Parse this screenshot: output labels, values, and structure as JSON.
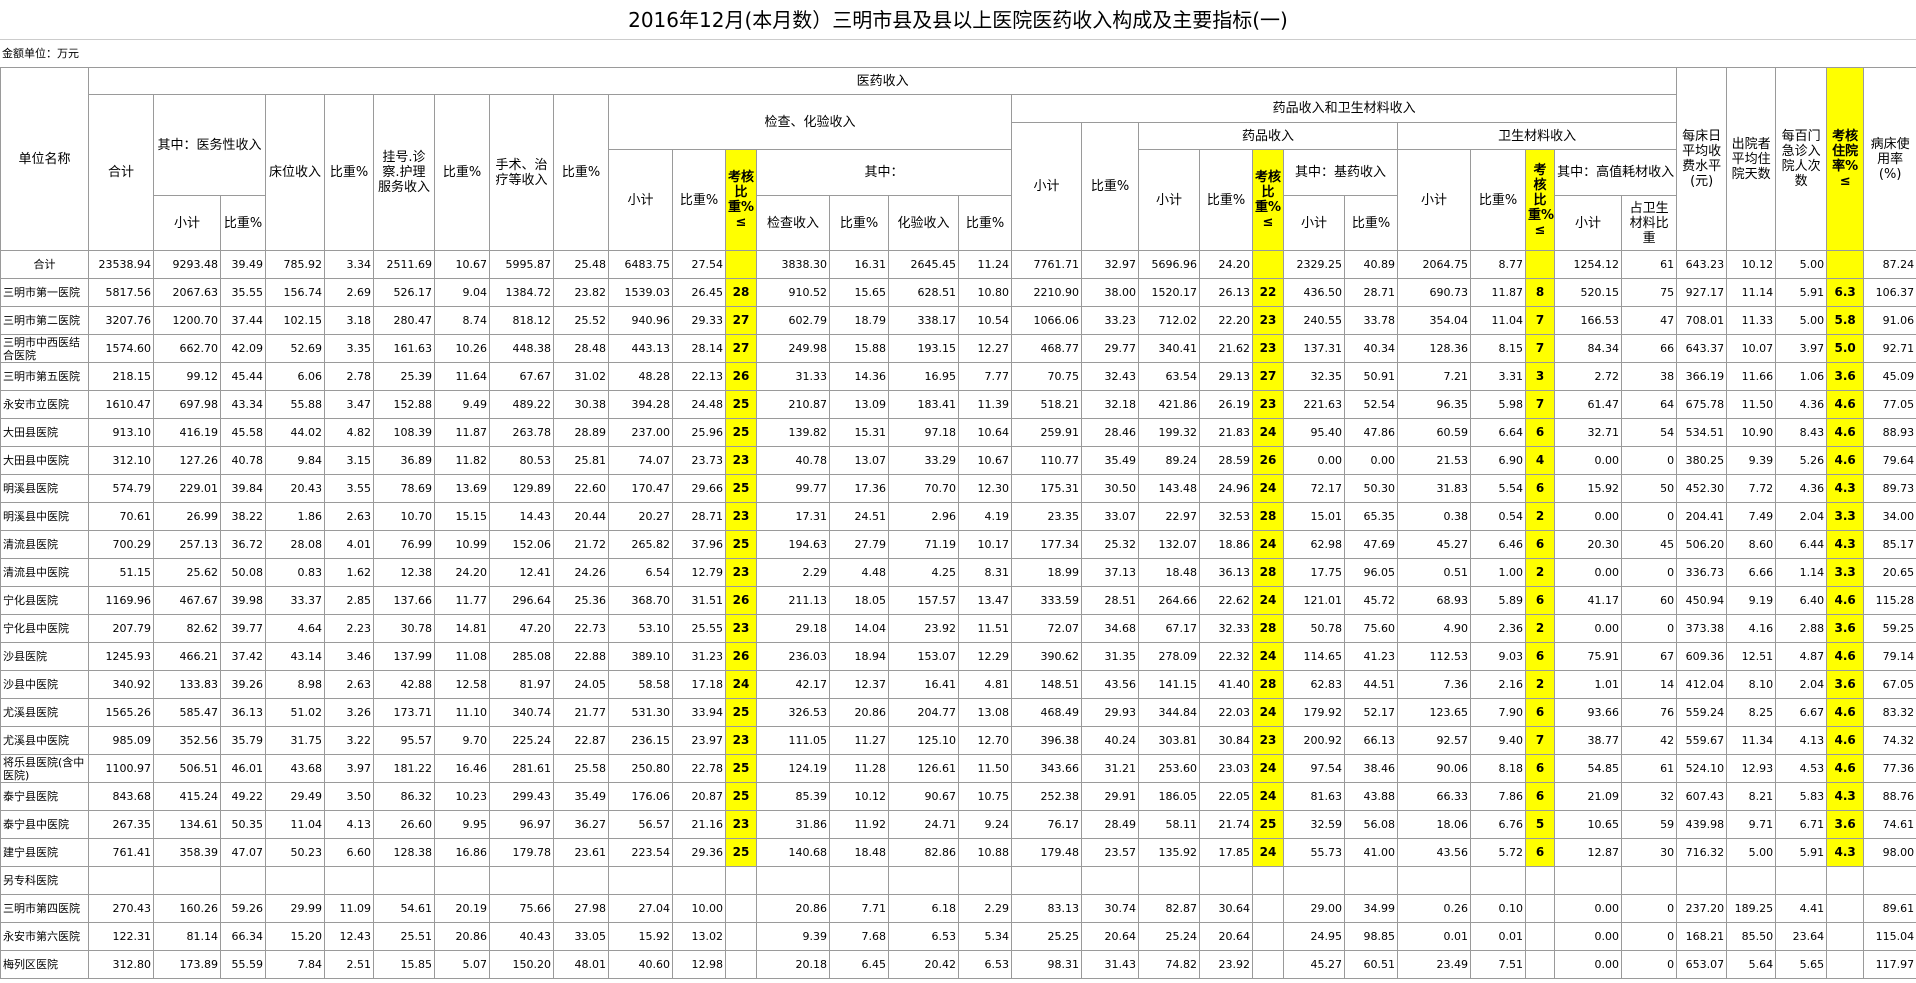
{
  "title": "2016年12月(本月数）三明市县及县以上医院医药收入构成及主要指标(一)",
  "unit": "金额单位：万元",
  "table": {
    "header": [
      [
        "单位名称",
        "医药收入",
        "每床日平均收费水平(元)",
        "出院者平均住院天数",
        "每百门急诊入院人次数",
        "考核住院率%≤",
        "病床使用率(%)"
      ],
      [
        "合计",
        "其中：医务性收入",
        "床位收入",
        "比重%",
        "挂号.诊察.护理服务收入",
        "比重%",
        "手术、治疗等收入",
        "比重%",
        "检查、化验收入",
        "药品收入和卫生材料收入"
      ],
      [
        "小计",
        "比重%",
        "药品收入",
        "卫生材料收入"
      ],
      [
        "小计",
        "比重%",
        "考核比重%≤",
        "其中：",
        "小计",
        "比重%",
        "考核比重%≤",
        "其中：基药收入",
        "小计",
        "比重%",
        "考核比重%≤",
        "其中：高值耗材收入"
      ],
      [
        "小计",
        "比重%",
        "检查收入",
        "比重%",
        "化验收入",
        "比重%",
        "小计",
        "比重%",
        "小计",
        "占卫生材料比重"
      ]
    ],
    "rows": [
      [
        "合计",
        "23538.94",
        "9293.48",
        "39.49",
        "785.92",
        "3.34",
        "2511.69",
        "10.67",
        "5995.87",
        "25.48",
        "6483.75",
        "27.54",
        null,
        "3838.30",
        "16.31",
        "2645.45",
        "11.24",
        "7761.71",
        "32.97",
        "5696.96",
        "24.20",
        null,
        "2329.25",
        "40.89",
        "2064.75",
        "8.77",
        null,
        "1254.12",
        "61",
        "643.23",
        "10.12",
        "5.00",
        null,
        "87.24"
      ],
      [
        "三明市第一医院",
        "5817.56",
        "2067.63",
        "35.55",
        "156.74",
        "2.69",
        "526.17",
        "9.04",
        "1384.72",
        "23.82",
        "1539.03",
        "26.45",
        "28",
        "910.52",
        "15.65",
        "628.51",
        "10.80",
        "2210.90",
        "38.00",
        "1520.17",
        "26.13",
        "22",
        "436.50",
        "28.71",
        "690.73",
        "11.87",
        "8",
        "520.15",
        "75",
        "927.17",
        "11.14",
        "5.91",
        "6.3",
        "106.37"
      ],
      [
        "三明市第二医院",
        "3207.76",
        "1200.70",
        "37.44",
        "102.15",
        "3.18",
        "280.47",
        "8.74",
        "818.12",
        "25.52",
        "940.96",
        "29.33",
        "27",
        "602.79",
        "18.79",
        "338.17",
        "10.54",
        "1066.06",
        "33.23",
        "712.02",
        "22.20",
        "23",
        "240.55",
        "33.78",
        "354.04",
        "11.04",
        "7",
        "166.53",
        "47",
        "708.01",
        "11.33",
        "5.00",
        "5.8",
        "91.06"
      ],
      [
        "三明市中西医结合医院",
        "1574.60",
        "662.70",
        "42.09",
        "52.69",
        "3.35",
        "161.63",
        "10.26",
        "448.38",
        "28.48",
        "443.13",
        "28.14",
        "27",
        "249.98",
        "15.88",
        "193.15",
        "12.27",
        "468.77",
        "29.77",
        "340.41",
        "21.62",
        "23",
        "137.31",
        "40.34",
        "128.36",
        "8.15",
        "7",
        "84.34",
        "66",
        "643.37",
        "10.07",
        "3.97",
        "5.0",
        "92.71"
      ],
      [
        "三明市第五医院",
        "218.15",
        "99.12",
        "45.44",
        "6.06",
        "2.78",
        "25.39",
        "11.64",
        "67.67",
        "31.02",
        "48.28",
        "22.13",
        "26",
        "31.33",
        "14.36",
        "16.95",
        "7.77",
        "70.75",
        "32.43",
        "63.54",
        "29.13",
        "27",
        "32.35",
        "50.91",
        "7.21",
        "3.31",
        "3",
        "2.72",
        "38",
        "366.19",
        "11.66",
        "1.06",
        "3.6",
        "45.09"
      ],
      [
        "永安市立医院",
        "1610.47",
        "697.98",
        "43.34",
        "55.88",
        "3.47",
        "152.88",
        "9.49",
        "489.22",
        "30.38",
        "394.28",
        "24.48",
        "25",
        "210.87",
        "13.09",
        "183.41",
        "11.39",
        "518.21",
        "32.18",
        "421.86",
        "26.19",
        "23",
        "221.63",
        "52.54",
        "96.35",
        "5.98",
        "7",
        "61.47",
        "64",
        "675.78",
        "11.50",
        "4.36",
        "4.6",
        "77.05"
      ],
      [
        "大田县医院",
        "913.10",
        "416.19",
        "45.58",
        "44.02",
        "4.82",
        "108.39",
        "11.87",
        "263.78",
        "28.89",
        "237.00",
        "25.96",
        "25",
        "139.82",
        "15.31",
        "97.18",
        "10.64",
        "259.91",
        "28.46",
        "199.32",
        "21.83",
        "24",
        "95.40",
        "47.86",
        "60.59",
        "6.64",
        "6",
        "32.71",
        "54",
        "534.51",
        "10.90",
        "8.43",
        "4.6",
        "88.93"
      ],
      [
        "大田县中医院",
        "312.10",
        "127.26",
        "40.78",
        "9.84",
        "3.15",
        "36.89",
        "11.82",
        "80.53",
        "25.81",
        "74.07",
        "23.73",
        "23",
        "40.78",
        "13.07",
        "33.29",
        "10.67",
        "110.77",
        "35.49",
        "89.24",
        "28.59",
        "26",
        "0.00",
        "0.00",
        "21.53",
        "6.90",
        "4",
        "0.00",
        "0",
        "380.25",
        "9.39",
        "5.26",
        "4.6",
        "79.64"
      ],
      [
        "明溪县医院",
        "574.79",
        "229.01",
        "39.84",
        "20.43",
        "3.55",
        "78.69",
        "13.69",
        "129.89",
        "22.60",
        "170.47",
        "29.66",
        "25",
        "99.77",
        "17.36",
        "70.70",
        "12.30",
        "175.31",
        "30.50",
        "143.48",
        "24.96",
        "24",
        "72.17",
        "50.30",
        "31.83",
        "5.54",
        "6",
        "15.92",
        "50",
        "452.30",
        "7.72",
        "4.36",
        "4.3",
        "89.73"
      ],
      [
        "明溪县中医院",
        "70.61",
        "26.99",
        "38.22",
        "1.86",
        "2.63",
        "10.70",
        "15.15",
        "14.43",
        "20.44",
        "20.27",
        "28.71",
        "23",
        "17.31",
        "24.51",
        "2.96",
        "4.19",
        "23.35",
        "33.07",
        "22.97",
        "32.53",
        "28",
        "15.01",
        "65.35",
        "0.38",
        "0.54",
        "2",
        "0.00",
        "0",
        "204.41",
        "7.49",
        "2.04",
        "3.3",
        "34.00"
      ],
      [
        "清流县医院",
        "700.29",
        "257.13",
        "36.72",
        "28.08",
        "4.01",
        "76.99",
        "10.99",
        "152.06",
        "21.72",
        "265.82",
        "37.96",
        "25",
        "194.63",
        "27.79",
        "71.19",
        "10.17",
        "177.34",
        "25.32",
        "132.07",
        "18.86",
        "24",
        "62.98",
        "47.69",
        "45.27",
        "6.46",
        "6",
        "20.30",
        "45",
        "506.20",
        "8.60",
        "6.44",
        "4.3",
        "85.17"
      ],
      [
        "清流县中医院",
        "51.15",
        "25.62",
        "50.08",
        "0.83",
        "1.62",
        "12.38",
        "24.20",
        "12.41",
        "24.26",
        "6.54",
        "12.79",
        "23",
        "2.29",
        "4.48",
        "4.25",
        "8.31",
        "18.99",
        "37.13",
        "18.48",
        "36.13",
        "28",
        "17.75",
        "96.05",
        "0.51",
        "1.00",
        "2",
        "0.00",
        "0",
        "336.73",
        "6.66",
        "1.14",
        "3.3",
        "20.65"
      ],
      [
        "宁化县医院",
        "1169.96",
        "467.67",
        "39.98",
        "33.37",
        "2.85",
        "137.66",
        "11.77",
        "296.64",
        "25.36",
        "368.70",
        "31.51",
        "26",
        "211.13",
        "18.05",
        "157.57",
        "13.47",
        "333.59",
        "28.51",
        "264.66",
        "22.62",
        "24",
        "121.01",
        "45.72",
        "68.93",
        "5.89",
        "6",
        "41.17",
        "60",
        "450.94",
        "9.19",
        "6.40",
        "4.6",
        "115.28"
      ],
      [
        "宁化县中医院",
        "207.79",
        "82.62",
        "39.77",
        "4.64",
        "2.23",
        "30.78",
        "14.81",
        "47.20",
        "22.73",
        "53.10",
        "25.55",
        "23",
        "29.18",
        "14.04",
        "23.92",
        "11.51",
        "72.07",
        "34.68",
        "67.17",
        "32.33",
        "28",
        "50.78",
        "75.60",
        "4.90",
        "2.36",
        "2",
        "0.00",
        "0",
        "373.38",
        "4.16",
        "2.88",
        "3.6",
        "59.25"
      ],
      [
        "沙县医院",
        "1245.93",
        "466.21",
        "37.42",
        "43.14",
        "3.46",
        "137.99",
        "11.08",
        "285.08",
        "22.88",
        "389.10",
        "31.23",
        "26",
        "236.03",
        "18.94",
        "153.07",
        "12.29",
        "390.62",
        "31.35",
        "278.09",
        "22.32",
        "24",
        "114.65",
        "41.23",
        "112.53",
        "9.03",
        "6",
        "75.91",
        "67",
        "609.36",
        "12.51",
        "4.87",
        "4.6",
        "79.14"
      ],
      [
        "沙县中医院",
        "340.92",
        "133.83",
        "39.26",
        "8.98",
        "2.63",
        "42.88",
        "12.58",
        "81.97",
        "24.05",
        "58.58",
        "17.18",
        "24",
        "42.17",
        "12.37",
        "16.41",
        "4.81",
        "148.51",
        "43.56",
        "141.15",
        "41.40",
        "28",
        "62.83",
        "44.51",
        "7.36",
        "2.16",
        "2",
        "1.01",
        "14",
        "412.04",
        "8.10",
        "2.04",
        "3.6",
        "67.05"
      ],
      [
        "尤溪县医院",
        "1565.26",
        "585.47",
        "36.13",
        "51.02",
        "3.26",
        "173.71",
        "11.10",
        "340.74",
        "21.77",
        "531.30",
        "33.94",
        "25",
        "326.53",
        "20.86",
        "204.77",
        "13.08",
        "468.49",
        "29.93",
        "344.84",
        "22.03",
        "24",
        "179.92",
        "52.17",
        "123.65",
        "7.90",
        "6",
        "93.66",
        "76",
        "559.24",
        "8.25",
        "6.67",
        "4.6",
        "83.32"
      ],
      [
        "尤溪县中医院",
        "985.09",
        "352.56",
        "35.79",
        "31.75",
        "3.22",
        "95.57",
        "9.70",
        "225.24",
        "22.87",
        "236.15",
        "23.97",
        "23",
        "111.05",
        "11.27",
        "125.10",
        "12.70",
        "396.38",
        "40.24",
        "303.81",
        "30.84",
        "23",
        "200.92",
        "66.13",
        "92.57",
        "9.40",
        "7",
        "38.77",
        "42",
        "559.67",
        "11.34",
        "4.13",
        "4.6",
        "74.32"
      ],
      [
        "将乐县医院(含中医院)",
        "1100.97",
        "506.51",
        "46.01",
        "43.68",
        "3.97",
        "181.22",
        "16.46",
        "281.61",
        "25.58",
        "250.80",
        "22.78",
        "25",
        "124.19",
        "11.28",
        "126.61",
        "11.50",
        "343.66",
        "31.21",
        "253.60",
        "23.03",
        "24",
        "97.54",
        "38.46",
        "90.06",
        "8.18",
        "6",
        "54.85",
        "61",
        "524.10",
        "12.93",
        "4.53",
        "4.6",
        "77.36"
      ],
      [
        "泰宁县医院",
        "843.68",
        "415.24",
        "49.22",
        "29.49",
        "3.50",
        "86.32",
        "10.23",
        "299.43",
        "35.49",
        "176.06",
        "20.87",
        "25",
        "85.39",
        "10.12",
        "90.67",
        "10.75",
        "252.38",
        "29.91",
        "186.05",
        "22.05",
        "24",
        "81.63",
        "43.88",
        "66.33",
        "7.86",
        "6",
        "21.09",
        "32",
        "607.43",
        "8.21",
        "5.83",
        "4.3",
        "88.76"
      ],
      [
        "泰宁县中医院",
        "267.35",
        "134.61",
        "50.35",
        "11.04",
        "4.13",
        "26.60",
        "9.95",
        "96.97",
        "36.27",
        "56.57",
        "21.16",
        "23",
        "31.86",
        "11.92",
        "24.71",
        "9.24",
        "76.17",
        "28.49",
        "58.11",
        "21.74",
        "25",
        "32.59",
        "56.08",
        "18.06",
        "6.76",
        "5",
        "10.65",
        "59",
        "439.98",
        "9.71",
        "6.71",
        "3.6",
        "74.61"
      ],
      [
        "建宁县医院",
        "761.41",
        "358.39",
        "47.07",
        "50.23",
        "6.60",
        "128.38",
        "16.86",
        "179.78",
        "23.61",
        "223.54",
        "29.36",
        "25",
        "140.68",
        "18.48",
        "82.86",
        "10.88",
        "179.48",
        "23.57",
        "135.92",
        "17.85",
        "24",
        "55.73",
        "41.00",
        "43.56",
        "5.72",
        "6",
        "12.87",
        "30",
        "716.32",
        "5.00",
        "5.91",
        "4.3",
        "98.00"
      ],
      [
        "另专科医院"
      ],
      [
        "三明市第四医院",
        "270.43",
        "160.26",
        "59.26",
        "29.99",
        "11.09",
        "54.61",
        "20.19",
        "75.66",
        "27.98",
        "27.04",
        "10.00",
        null,
        "20.86",
        "7.71",
        "6.18",
        "2.29",
        "83.13",
        "30.74",
        "82.87",
        "30.64",
        null,
        "29.00",
        "34.99",
        "0.26",
        "0.10",
        null,
        "0.00",
        "0",
        "237.20",
        "189.25",
        "4.41",
        null,
        "89.61"
      ],
      [
        "永安市第六医院",
        "122.31",
        "81.14",
        "66.34",
        "15.20",
        "12.43",
        "25.51",
        "20.86",
        "40.43",
        "33.05",
        "15.92",
        "13.02",
        null,
        "9.39",
        "7.68",
        "6.53",
        "5.34",
        "25.25",
        "20.64",
        "25.24",
        "20.64",
        null,
        "24.95",
        "98.85",
        "0.01",
        "0.01",
        null,
        "0.00",
        "0",
        "168.21",
        "85.50",
        "23.64",
        null,
        "115.04"
      ],
      [
        "梅列区医院",
        "312.80",
        "173.89",
        "55.59",
        "7.84",
        "2.51",
        "15.85",
        "5.07",
        "150.20",
        "48.01",
        "40.60",
        "12.98",
        null,
        "20.18",
        "6.45",
        "20.42",
        "6.53",
        "98.31",
        "31.43",
        "74.82",
        "23.92",
        null,
        "45.27",
        "60.51",
        "23.49",
        "7.51",
        null,
        "0.00",
        "0",
        "653.07",
        "5.64",
        "5.65",
        null,
        "117.97"
      ]
    ]
  }
}
